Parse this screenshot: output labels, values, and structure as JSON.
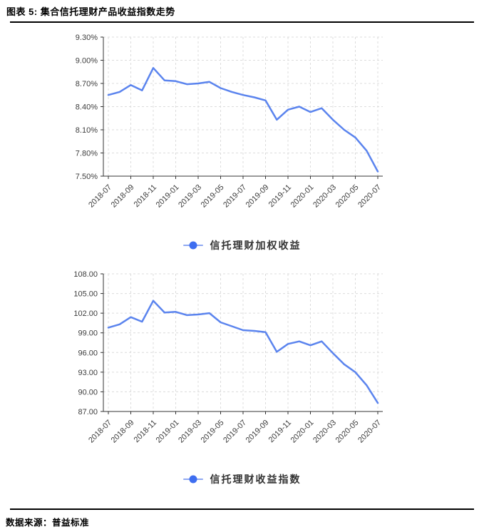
{
  "header": {
    "title": "图表 5: 集合信托理财产品收益指数走势"
  },
  "footer": {
    "label": "数据来源：",
    "source": "普益标准"
  },
  "colors": {
    "line": "#5B84EE",
    "marker": "#3E6EF0",
    "legend_line": "#8FA8F2",
    "grid": "#DCDCDC",
    "axis": "#333333",
    "text": "#3D3D3D",
    "rule": "#000000"
  },
  "chart_data": [
    {
      "type": "line",
      "name": "信托理财加权收益",
      "legend": "信托理财加权收益",
      "x": [
        "2018-07",
        "2018-08",
        "2018-09",
        "2018-10",
        "2018-11",
        "2018-12",
        "2019-01",
        "2019-02",
        "2019-03",
        "2019-04",
        "2019-05",
        "2019-06",
        "2019-07",
        "2019-08",
        "2019-09",
        "2019-10",
        "2019-11",
        "2019-12",
        "2020-01",
        "2020-02",
        "2020-03",
        "2020-04",
        "2020-05",
        "2020-06",
        "2020-07"
      ],
      "values": [
        8.55,
        8.59,
        8.68,
        8.61,
        8.9,
        8.74,
        8.73,
        8.69,
        8.7,
        8.72,
        8.64,
        8.59,
        8.55,
        8.52,
        8.48,
        8.23,
        8.36,
        8.4,
        8.33,
        8.38,
        8.23,
        8.1,
        8.0,
        7.83,
        7.56
      ],
      "ylim": [
        7.5,
        9.3
      ],
      "y_ticks": [
        7.5,
        7.8,
        8.1,
        8.4,
        8.7,
        9.0,
        9.3
      ],
      "y_tick_labels": [
        "7.50%",
        "7.80%",
        "8.10%",
        "8.40%",
        "8.70%",
        "9.00%",
        "9.30%"
      ],
      "x_label_step": 2,
      "grid": "dashed",
      "legend_position": "bottom"
    },
    {
      "type": "line",
      "name": "信托理财收益指数",
      "legend": "信托理财收益指数",
      "x": [
        "2018-07",
        "2018-08",
        "2018-09",
        "2018-10",
        "2018-11",
        "2018-12",
        "2019-01",
        "2019-02",
        "2019-03",
        "2019-04",
        "2019-05",
        "2019-06",
        "2019-07",
        "2019-08",
        "2019-09",
        "2019-10",
        "2019-11",
        "2019-12",
        "2020-01",
        "2020-02",
        "2020-03",
        "2020-04",
        "2020-05",
        "2020-06",
        "2020-07"
      ],
      "values": [
        99.8,
        100.3,
        101.4,
        100.7,
        103.9,
        102.1,
        102.2,
        101.7,
        101.8,
        102.0,
        100.6,
        100.0,
        99.4,
        99.3,
        99.1,
        96.1,
        97.3,
        97.7,
        97.1,
        97.7,
        95.9,
        94.2,
        93.0,
        91.0,
        88.3
      ],
      "ylim": [
        87,
        108
      ],
      "y_ticks": [
        87,
        90,
        93,
        96,
        99,
        102,
        105,
        108
      ],
      "y_tick_labels": [
        "87.00",
        "90.00",
        "93.00",
        "96.00",
        "99.00",
        "102.00",
        "105.00",
        "108.00"
      ],
      "x_label_step": 2,
      "grid": "dashed",
      "legend_position": "bottom"
    }
  ]
}
